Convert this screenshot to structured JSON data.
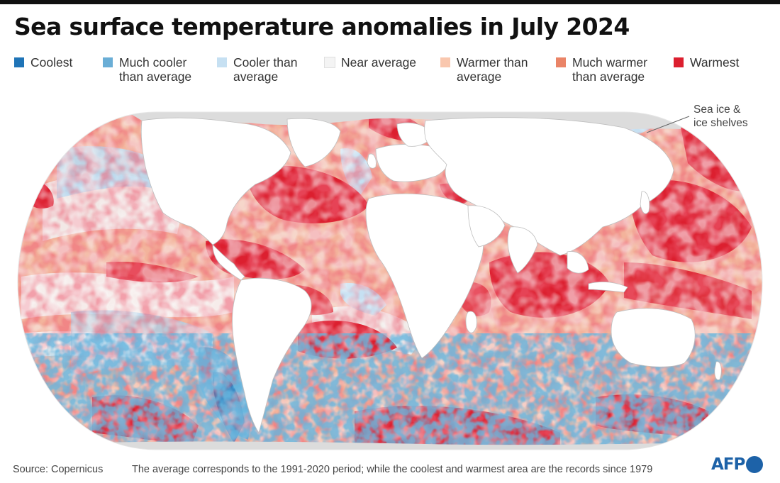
{
  "title": "Sea surface temperature anomalies in July 2024",
  "legend": [
    {
      "label": "Coolest",
      "color": "#1f74b7"
    },
    {
      "label": "Much cooler\nthan average",
      "color": "#6aaed6"
    },
    {
      "label": "Cooler than\naverage",
      "color": "#c6e0f2"
    },
    {
      "label": "Near average",
      "color": "#f4f4f4"
    },
    {
      "label": "Warmer than\naverage",
      "color": "#f9c7ae"
    },
    {
      "label": "Much warmer\nthan average",
      "color": "#ea8467"
    },
    {
      "label": "Warmest",
      "color": "#dc1f2f"
    }
  ],
  "annotation": "Sea ice &\nice shelves",
  "colors": {
    "land": "#ffffff",
    "ice": "#dcdcdc",
    "ocean_base": "#f3b39b"
  },
  "footer": {
    "source": "Source: Copernicus",
    "note": "The average corresponds to the 1991-2020 period; while the coolest and warmest area are the records since 1979"
  },
  "logo": {
    "text": "AFP"
  }
}
